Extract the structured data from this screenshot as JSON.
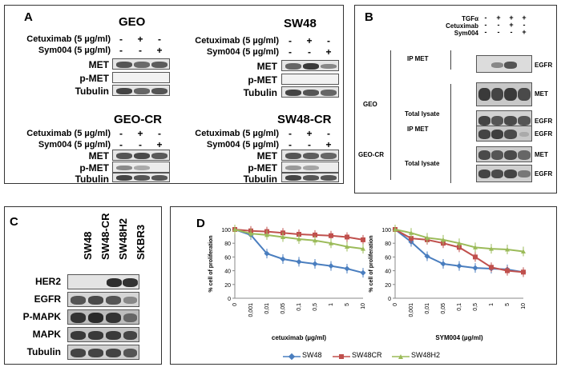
{
  "panel_a": {
    "letter": "A",
    "conc_cetuximab": "Cetuximab (5 µg/ml)",
    "conc_sym": "Sym004 (5 µg/ml)",
    "row_met": "MET",
    "row_pmet": "p-MET",
    "row_tubulin": "Tubulin",
    "plus": "+",
    "minus": "-",
    "geo": "GEO",
    "sw48": "SW48",
    "geo_cr": "GEO-CR",
    "sw48_cr": "SW48-CR"
  },
  "panel_b": {
    "letter": "B",
    "treat_tgf": "TGFα",
    "treat_cetux": "Cetuximab",
    "treat_sym": "Sym004",
    "geo": "GEO",
    "geo_cr": "GEO-CR",
    "ip_met": "IP MET",
    "total_lysate": "Total lysate",
    "egfr": "EGFR",
    "met": "MET",
    "plus": "+",
    "minus": "-"
  },
  "panel_c": {
    "letter": "C",
    "lanes": [
      "SW48",
      "SW48-CR",
      "SW48H2",
      "SKBR3"
    ],
    "rows": [
      "HER2",
      "EGFR",
      "P-MAPK",
      "MAPK",
      "Tubulin"
    ]
  },
  "panel_d": {
    "letter": "D"
  },
  "chart_data": [
    {
      "type": "line",
      "x": [
        "0",
        "0,001",
        "0,01",
        "0,05",
        "0,1",
        "0,5",
        "1",
        "5",
        "10"
      ],
      "xlabel": "cetuximab (µg/ml)",
      "ylabel": "% cell of proliferation",
      "ylim": [
        0,
        100
      ],
      "yticks": [
        "0",
        "20",
        "40",
        "60",
        "80",
        "100"
      ],
      "series": [
        {
          "name": "SW48",
          "color": "#4a7ebf",
          "values": [
            100,
            92,
            65,
            57,
            53,
            50,
            47,
            43,
            37
          ]
        },
        {
          "name": "SW48CR",
          "color": "#c0504d",
          "values": [
            100,
            98,
            97,
            95,
            93,
            92,
            91,
            89,
            85
          ]
        },
        {
          "name": "SW48H2",
          "color": "#9bbb59",
          "values": [
            100,
            94,
            92,
            89,
            86,
            84,
            80,
            75,
            72
          ]
        }
      ]
    },
    {
      "type": "line",
      "x": [
        "0",
        "0,001",
        "0,01",
        "0,05",
        "0,1",
        "0,5",
        "1",
        "5",
        "10"
      ],
      "xlabel": "SYM004 (µg/ml)",
      "ylabel": "% cell of proliferation",
      "ylim": [
        0,
        100
      ],
      "yticks": [
        "0",
        "20",
        "40",
        "60",
        "80",
        "100"
      ],
      "series": [
        {
          "name": "SW48",
          "color": "#4a7ebf",
          "values": [
            100,
            82,
            61,
            50,
            47,
            44,
            43,
            42,
            38
          ]
        },
        {
          "name": "SW48CR",
          "color": "#c0504d",
          "values": [
            100,
            87,
            85,
            80,
            74,
            60,
            45,
            40,
            38
          ]
        },
        {
          "name": "SW48H2",
          "color": "#9bbb59",
          "values": [
            100,
            95,
            88,
            85,
            80,
            74,
            72,
            71,
            68
          ]
        }
      ]
    }
  ],
  "legend": [
    "SW48",
    "SW48CR",
    "SW48H2"
  ]
}
